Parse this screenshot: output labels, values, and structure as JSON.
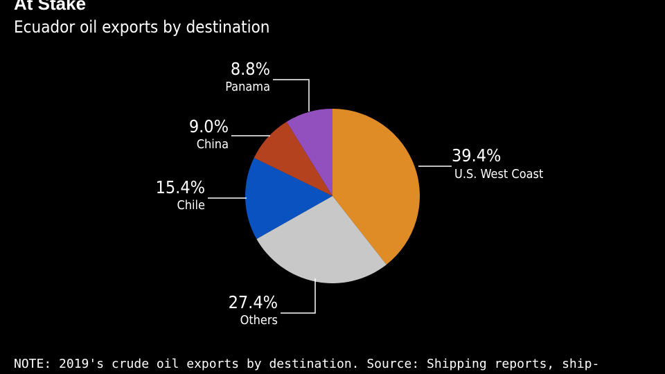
{
  "title": "At Stake",
  "subtitle": "Ecuador oil exports by destination",
  "note": "NOTE: 2019's crude oil exports by destination. Source: Shipping reports, ship-",
  "chart_data": {
    "type": "pie",
    "start_angle_deg": 0,
    "direction": "clockwise",
    "slices": [
      {
        "label": "U.S. West Coast",
        "value": 39.4,
        "value_label": "39.4%",
        "color": "#df8b26"
      },
      {
        "label": "Others",
        "value": 27.4,
        "value_label": "27.4%",
        "color": "#c8c8c8"
      },
      {
        "label": "Chile",
        "value": 15.4,
        "value_label": "15.4%",
        "color": "#0a52c0"
      },
      {
        "label": "China",
        "value": 9.0,
        "value_label": "9.0%",
        "color": "#b4421e"
      },
      {
        "label": "Panama",
        "value": 8.8,
        "value_label": "8.8%",
        "color": "#9150be"
      }
    ]
  }
}
